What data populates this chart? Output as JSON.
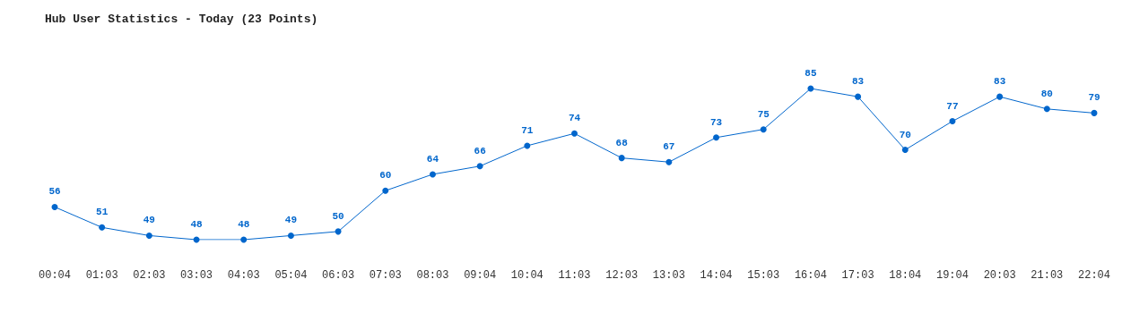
{
  "chart_data": {
    "type": "line",
    "title": "Hub User Statistics - Today (23 Points)",
    "categories": [
      "00:04",
      "01:03",
      "02:03",
      "03:03",
      "04:03",
      "05:04",
      "06:03",
      "07:03",
      "08:03",
      "09:04",
      "10:04",
      "11:03",
      "12:03",
      "13:03",
      "14:04",
      "15:03",
      "16:04",
      "17:03",
      "18:04",
      "19:04",
      "20:03",
      "21:03",
      "22:04"
    ],
    "series": [
      {
        "color": "#0066cc",
        "values": [
          56,
          51,
          49,
          48,
          48,
          49,
          50,
          60,
          64,
          66,
          71,
          74,
          68,
          67,
          73,
          75,
          85,
          83,
          70,
          77,
          83,
          80,
          79
        ]
      }
    ],
    "data_labels": true,
    "marker": "circle",
    "grid": false
  }
}
